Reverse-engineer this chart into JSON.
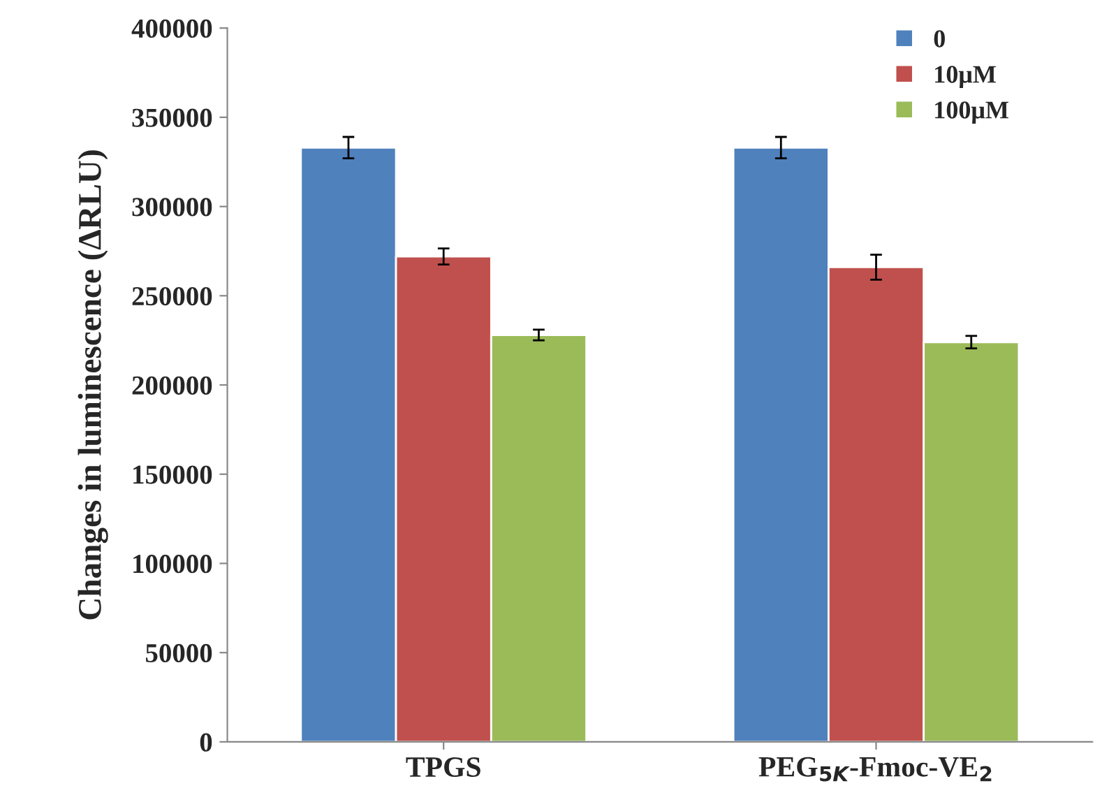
{
  "chart_data": {
    "type": "bar",
    "ylabel": "Changes in luminescence (∆RLU)",
    "categories": [
      "TPGS",
      "PEG$_{5K}$-Fmoc-VE$_{2}$"
    ],
    "series": [
      {
        "name": "0",
        "color": "#4f81bd",
        "values": [
          333000,
          333000
        ],
        "errors": [
          6000,
          6000
        ]
      },
      {
        "name": "10μM",
        "color": "#c0504d",
        "values": [
          272000,
          266000
        ],
        "errors": [
          4500,
          7000
        ]
      },
      {
        "name": "100μM",
        "color": "#9bbb59",
        "values": [
          228000,
          224000
        ],
        "errors": [
          3000,
          3500
        ]
      }
    ],
    "ylim": [
      0,
      400000
    ],
    "yticks": [
      0,
      50000,
      100000,
      150000,
      200000,
      250000,
      300000,
      350000,
      400000
    ],
    "grid": false,
    "legend": "top right"
  }
}
